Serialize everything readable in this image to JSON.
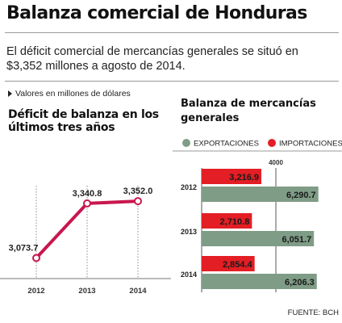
{
  "header": {
    "title": "Balanza comercial de Honduras",
    "subtitle": "El déficit comercial de mercancías generales se situó en $3,352 millones a agosto de 2014.",
    "units_note": "Valores en millones de dólares",
    "source": "FUENTE: BCH"
  },
  "colors": {
    "line": "#c8174e",
    "importaciones": "#e31e24",
    "exportaciones": "#7f9c87",
    "grid": "#8a8a8a"
  },
  "chart_data": [
    {
      "type": "line",
      "title_lines": [
        "Déficit de balanza en los",
        "últimos tres años"
      ],
      "x": [
        "2012",
        "2013",
        "2014"
      ],
      "values": [
        3073.7,
        3340.8,
        3352.0
      ],
      "value_labels": [
        "3,073.7",
        "3,340.8",
        "3,352.0"
      ],
      "ylim": [
        3040,
        3380
      ],
      "grid": "vertical dotted lines at each year"
    },
    {
      "type": "bar",
      "orientation": "horizontal",
      "title_lines": [
        "Balanza de mercancías",
        "generales"
      ],
      "categories": [
        "2012",
        "2013",
        "2014"
      ],
      "legend": "top",
      "series": [
        {
          "name": "IMPORTACIONES",
          "color_key": "importaciones",
          "values": [
            3216.9,
            2710.8,
            2854.4
          ],
          "labels": [
            "3,216.9",
            "2,710.8",
            "2,854.4"
          ]
        },
        {
          "name": "EXPORTACIONES",
          "color_key": "exportaciones",
          "values": [
            6290.7,
            6051.7,
            6206.3
          ],
          "labels": [
            "6,290.7",
            "6,051.7",
            "6,206.3"
          ]
        }
      ],
      "legend_order": [
        "EXPORTACIONES",
        "IMPORTACIONES"
      ],
      "xlim": [
        0,
        8000
      ],
      "ticks": [
        {
          "value": 4000,
          "label": "4000"
        },
        {
          "value": 8000,
          "label": "8000"
        }
      ]
    }
  ]
}
